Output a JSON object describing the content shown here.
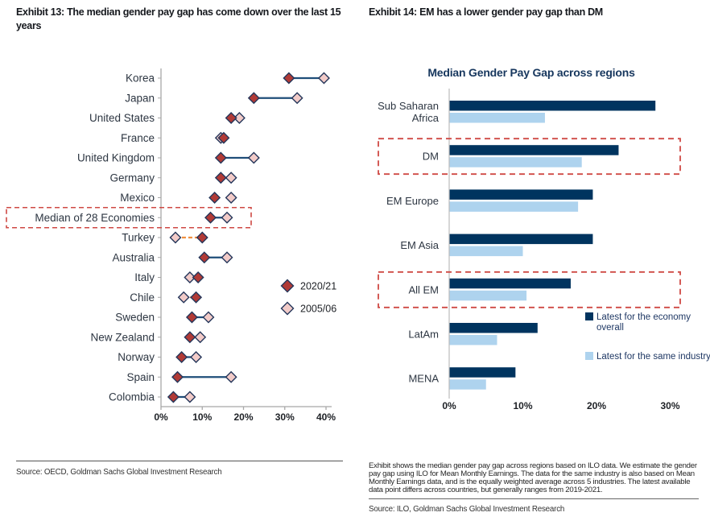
{
  "left": {
    "title": "Exhibit 13: The median gender pay gap has come down over the last 15 years",
    "source": "Source: OECD, Goldman Sachs Global Investment Research"
  },
  "right": {
    "title": "Exhibit 14: EM has a lower gender pay gap than DM",
    "footnote": "Exhibit shows the median gender pay gap across regions based on ILO data. We estimate the gender pay gap using ILO for Mean Monthly Earnings. The data for the same industry is also based on Mean Monthly Earnings data, and is the equally weighted average across 5 industries. The latest available data point differs across countries, but generally ranges from 2019-2021.",
    "source": "Source: ILO, Goldman Sachs Global Investment Research"
  },
  "colors": {
    "dark_red": "#b13a36",
    "pink": "#f2cbc8",
    "diamond_stroke": "#24365a",
    "line_navy": "#1f4e79",
    "line_orange": "#ef8f3f",
    "box_red": "#cf4944",
    "navy": "#00345f",
    "light_blue": "#aed3ee",
    "axis": "#a8a8a8",
    "tick_text": "#1d2025",
    "label_text": "#2d3642",
    "legend_text_right": "#1f3864"
  },
  "chart_data": [
    {
      "type": "scatter",
      "subtype": "dumbbell",
      "title": "",
      "xlim": [
        0,
        40
      ],
      "x_ticks": [
        "0%",
        "10%",
        "20%",
        "30%",
        "40%"
      ],
      "legend": [
        "2020/21",
        "2005/06"
      ],
      "legend_position": "center-right",
      "rows": [
        {
          "label": "Korea",
          "v_2020_21": 31,
          "v_2005_06": 39.5,
          "trend_line": "navy"
        },
        {
          "label": "Japan",
          "v_2020_21": 22.5,
          "v_2005_06": 33,
          "trend_line": "navy"
        },
        {
          "label": "United States",
          "v_2020_21": 17,
          "v_2005_06": 19,
          "trend_line": "none"
        },
        {
          "label": "France",
          "v_2020_21": 15.2,
          "v_2005_06": 14.5,
          "trend_line": "none"
        },
        {
          "label": "United Kingdom",
          "v_2020_21": 14.5,
          "v_2005_06": 22.5,
          "trend_line": "navy"
        },
        {
          "label": "Germany",
          "v_2020_21": 14.5,
          "v_2005_06": 17,
          "trend_line": "none"
        },
        {
          "label": "Mexico",
          "v_2020_21": 13,
          "v_2005_06": 17,
          "trend_line": "none"
        },
        {
          "label": "Median of 28 Economies",
          "v_2020_21": 12,
          "v_2005_06": 16,
          "trend_line": "navy",
          "highlight": true
        },
        {
          "label": "Turkey",
          "v_2020_21": 10,
          "v_2005_06": 3.5,
          "trend_line": "orange-dashed"
        },
        {
          "label": "Australia",
          "v_2020_21": 10.5,
          "v_2005_06": 16,
          "trend_line": "navy"
        },
        {
          "label": "Italy",
          "v_2020_21": 9,
          "v_2005_06": 7,
          "trend_line": "none"
        },
        {
          "label": "Chile",
          "v_2020_21": 8.5,
          "v_2005_06": 5.5,
          "trend_line": "orange-dashed"
        },
        {
          "label": "Sweden",
          "v_2020_21": 7.5,
          "v_2005_06": 11.5,
          "trend_line": "navy"
        },
        {
          "label": "New Zealand",
          "v_2020_21": 7,
          "v_2005_06": 9.5,
          "trend_line": "none"
        },
        {
          "label": "Norway",
          "v_2020_21": 5,
          "v_2005_06": 8.5,
          "trend_line": "navy"
        },
        {
          "label": "Spain",
          "v_2020_21": 4,
          "v_2005_06": 17,
          "trend_line": "navy"
        },
        {
          "label": "Colombia",
          "v_2020_21": 3,
          "v_2005_06": 7,
          "trend_line": "navy"
        }
      ]
    },
    {
      "type": "bar",
      "orientation": "horizontal",
      "title": "Median Gender Pay Gap across regions",
      "xlim": [
        0,
        30
      ],
      "x_ticks": [
        "0%",
        "10%",
        "20%",
        "30%"
      ],
      "categories": [
        "Sub Saharan Africa",
        "DM",
        "EM Europe",
        "EM Asia",
        "All EM",
        "LatAm",
        "MENA"
      ],
      "category_lines": [
        [
          "Sub Saharan",
          "Africa"
        ],
        [
          "DM"
        ],
        [
          "EM Europe"
        ],
        [
          "EM Asia"
        ],
        [
          "All EM"
        ],
        [
          "LatAm"
        ],
        [
          "MENA"
        ]
      ],
      "series": [
        {
          "name": "Latest for the economy overall",
          "color_key": "navy",
          "values": [
            28,
            23,
            19.5,
            19.5,
            16.5,
            12,
            9
          ]
        },
        {
          "name": "Latest for the same industry",
          "color_key": "light_blue",
          "values": [
            13,
            18,
            17.5,
            10,
            10.5,
            6.5,
            5
          ]
        }
      ],
      "legend_lines": [
        [
          "Latest for the economy",
          "overall"
        ],
        [
          "Latest for the same industry"
        ]
      ],
      "highlighted_categories": [
        "DM",
        "All EM"
      ]
    }
  ]
}
